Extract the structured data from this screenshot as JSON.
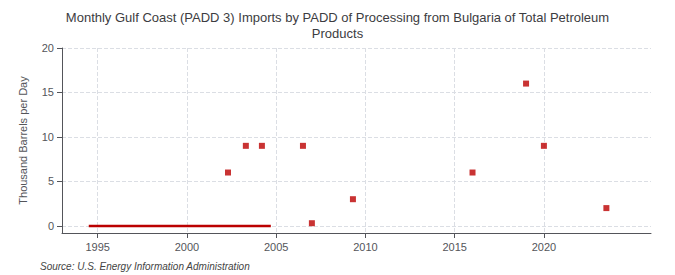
{
  "chart_data": {
    "type": "scatter",
    "title": "Monthly Gulf Coast (PADD 3) Imports by PADD of Processing from Bulgaria of Total Petroleum\nProducts",
    "ylabel": "Thousand Barrels per Day",
    "annotation": "Source: U.S. Energy Information Administration",
    "xlim": [
      1993,
      2026
    ],
    "ylim": [
      -0.8,
      20
    ],
    "xticks": [
      1995,
      2000,
      2005,
      2010,
      2015,
      2020
    ],
    "yticks": [
      0,
      5,
      10,
      15,
      20
    ],
    "grid": true,
    "series": [
      {
        "type": "line",
        "color": "#bb0000",
        "x": [
          1994.5,
          2004.7
        ],
        "values": [
          0.0,
          0.0
        ]
      },
      {
        "type": "scatter",
        "color": "#bb0000",
        "marker": "square",
        "x": [
          2002.3,
          2003.3,
          2004.2,
          2006.5,
          2007.0,
          2009.3,
          2016.0,
          2019.0,
          2020.0,
          2023.5
        ],
        "values": [
          6.0,
          9.0,
          9.0,
          9.0,
          0.3,
          3.0,
          6.0,
          16.0,
          9.0,
          2.0
        ]
      }
    ]
  }
}
